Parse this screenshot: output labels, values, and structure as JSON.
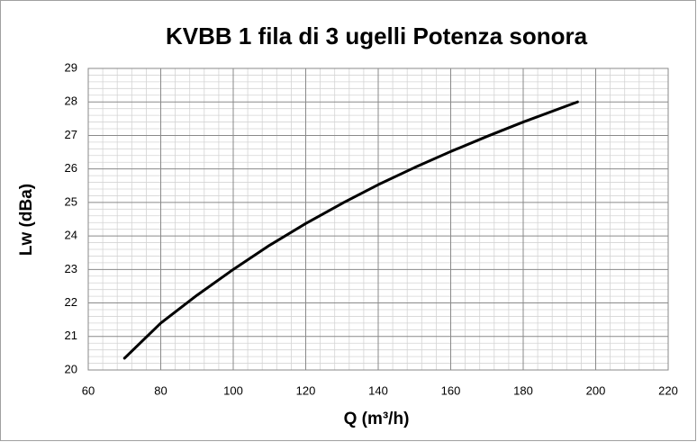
{
  "chart_data": {
    "type": "line",
    "title": "KVBB 1 fila di 3 ugelli Potenza sonora",
    "x_label": "Q (m³/h)",
    "y_label": "Lw (dBa)",
    "x": [
      70,
      80,
      90,
      100,
      110,
      120,
      130,
      140,
      150,
      160,
      170,
      180,
      195
    ],
    "series": [
      {
        "name": "Lw",
        "color": "#000000",
        "values": [
          20.35,
          21.4,
          22.23,
          23.0,
          23.72,
          24.37,
          24.97,
          25.53,
          26.04,
          26.52,
          26.97,
          27.4,
          28.0
        ]
      }
    ],
    "xlim": [
      60,
      220
    ],
    "xticks": [
      60,
      80,
      100,
      120,
      140,
      160,
      180,
      200,
      220
    ],
    "ylim": [
      20,
      29
    ],
    "yticks": [
      20,
      21,
      22,
      23,
      24,
      25,
      26,
      27,
      28,
      29
    ],
    "grid": true
  }
}
